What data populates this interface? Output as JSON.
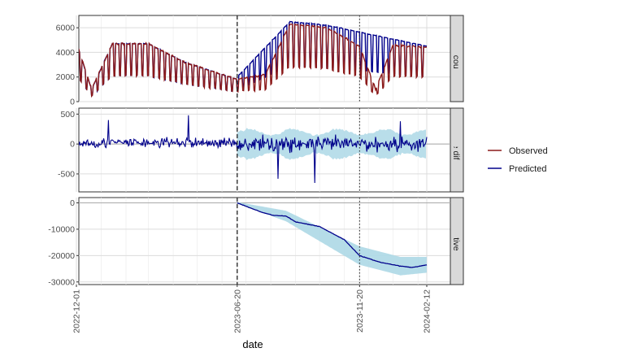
{
  "chart_data": {
    "type": "line",
    "xlabel": "date",
    "x_ticks": [
      "2022-12-01",
      "2023-06-20",
      "2023-11-20",
      "2024-02-12"
    ],
    "x_range": [
      "2022-12-01",
      "2024-02-12"
    ],
    "intervention_date": "2023-06-20",
    "reference_dates": [
      "2022-12-01",
      "2023-11-20"
    ],
    "grid": true,
    "legend_position": "right",
    "legend": [
      {
        "name": "Observed",
        "color": "#8b1a1a"
      },
      {
        "name": "Predicted",
        "color": "#00008b"
      }
    ],
    "band_color": "#add8e6",
    "panels": [
      {
        "strip": "Observed + counterfactual",
        "ylim": [
          0,
          7000
        ],
        "y_ticks": [
          0,
          2000,
          4000,
          6000
        ],
        "series_observed": [
          {
            "date": "2022-12-01",
            "value": 4800
          },
          {
            "date": "2022-12-20",
            "value": 1000
          },
          {
            "date": "2023-01-15",
            "value": 4700
          },
          {
            "date": "2023-03-01",
            "value": 4700
          },
          {
            "date": "2023-04-15",
            "value": 3200
          },
          {
            "date": "2023-06-20",
            "value": 1800
          },
          {
            "date": "2023-07-25",
            "value": 2200
          },
          {
            "date": "2023-08-25",
            "value": 6300
          },
          {
            "date": "2023-10-10",
            "value": 6000
          },
          {
            "date": "2023-11-20",
            "value": 4500
          },
          {
            "date": "2023-12-10",
            "value": 1000
          },
          {
            "date": "2024-01-01",
            "value": 4600
          },
          {
            "date": "2024-02-12",
            "value": 4400
          }
        ],
        "series_predicted": [
          {
            "date": "2022-12-01",
            "value": 4900
          },
          {
            "date": "2023-06-20",
            "value": 2000
          },
          {
            "date": "2023-08-25",
            "value": 6500
          },
          {
            "date": "2023-10-10",
            "value": 6200
          },
          {
            "date": "2024-02-12",
            "value": 4500
          }
        ]
      },
      {
        "strip": "Pointwise difference",
        "ylim": [
          -800,
          600
        ],
        "y_ticks": [
          500,
          0,
          -500
        ],
        "y_tick_labels": [
          "500",
          "0",
          "-500"
        ],
        "band_post_intervention": [
          -200,
          200
        ],
        "series_observed": [
          {
            "date": "2023-01-10",
            "value": 400
          },
          {
            "date": "2023-04-20",
            "value": 480
          },
          {
            "date": "2023-08-10",
            "value": -580
          },
          {
            "date": "2023-09-25",
            "value": -650
          },
          {
            "date": "2024-01-10",
            "value": 380
          }
        ]
      },
      {
        "strip": "Cumulative effect",
        "ylim": [
          -31000,
          2000
        ],
        "y_ticks": [
          0,
          -10000,
          -20000,
          -30000
        ],
        "y_tick_labels": [
          "0",
          "-10000",
          "-20000",
          "-30000"
        ],
        "series_predicted": [
          {
            "date": "2023-06-20",
            "value": 0
          },
          {
            "date": "2023-07-20",
            "value": -3500
          },
          {
            "date": "2023-08-05",
            "value": -4800
          },
          {
            "date": "2023-08-20",
            "value": -5000
          },
          {
            "date": "2023-09-01",
            "value": -7200
          },
          {
            "date": "2023-10-01",
            "value": -9000
          },
          {
            "date": "2023-11-01",
            "value": -14000
          },
          {
            "date": "2023-11-20",
            "value": -20000
          },
          {
            "date": "2023-12-15",
            "value": -22500
          },
          {
            "date": "2024-01-10",
            "value": -24000
          },
          {
            "date": "2024-01-25",
            "value": -24500
          },
          {
            "date": "2024-02-12",
            "value": -23500
          }
        ],
        "band_lower": [
          {
            "date": "2023-06-20",
            "value": -300
          },
          {
            "date": "2023-08-20",
            "value": -7000
          },
          {
            "date": "2023-11-20",
            "value": -23500
          },
          {
            "date": "2024-01-10",
            "value": -27500
          },
          {
            "date": "2024-02-12",
            "value": -26500
          }
        ],
        "band_upper": [
          {
            "date": "2023-06-20",
            "value": 300
          },
          {
            "date": "2023-08-20",
            "value": -3000
          },
          {
            "date": "2023-11-20",
            "value": -16500
          },
          {
            "date": "2024-01-10",
            "value": -20500
          },
          {
            "date": "2024-02-12",
            "value": -20500
          }
        ]
      }
    ]
  }
}
